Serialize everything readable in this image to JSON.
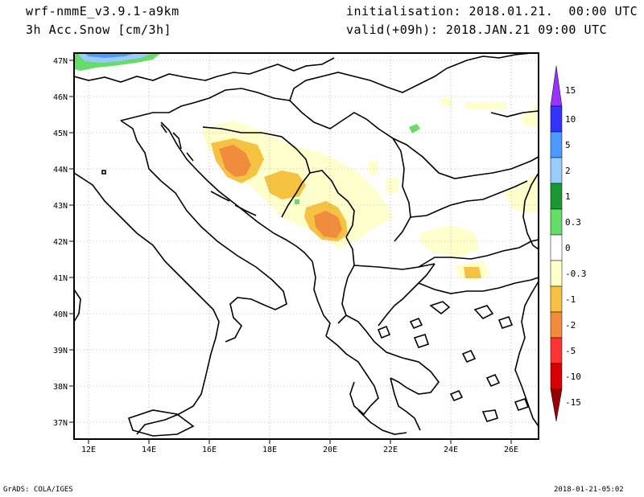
{
  "header": {
    "model": "wrf-nmmE_v3.9.1-a9km",
    "field": "3h Acc.Snow [cm/3h]",
    "init": "initialisation: 2018.01.21.  00:00 UTC",
    "valid": "valid(+09h): 2018.JAN.21 09:00 UTC"
  },
  "footer": {
    "left": "GrADS: COLA/IGES",
    "right": "2018-01-21-05:02"
  },
  "map": {
    "lat_ticks": [
      "47N",
      "46N",
      "45N",
      "44N",
      "43N",
      "42N",
      "41N",
      "40N",
      "39N",
      "38N",
      "37N"
    ],
    "lon_ticks": [
      "12E",
      "14E",
      "16E",
      "18E",
      "20E",
      "22E",
      "24E",
      "26E"
    ]
  },
  "colorbar": {
    "labels": [
      "15",
      "10",
      "5",
      "2",
      "1",
      "0.3",
      "0",
      "-0.3",
      "-1",
      "-2",
      "-5",
      "-10",
      "-15"
    ],
    "colors": [
      "#9933ff",
      "#3333ff",
      "#4d99ff",
      "#99ccff",
      "#1a9933",
      "#66dd66",
      "#ffffff",
      "#ffffcc",
      "#f5c242",
      "#f08c3c",
      "#ff3333",
      "#d90000",
      "#990000"
    ]
  }
}
